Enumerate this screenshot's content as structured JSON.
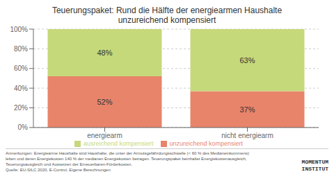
{
  "chart_data": {
    "type": "bar",
    "title": "Teuerungspaket: Rund die Hälfte der energiearmen Haushalte",
    "subtitle": "unzureichend kompensiert",
    "categories": [
      "energiearm",
      "nicht energiearm"
    ],
    "series": [
      {
        "name": "unzureichend kompensiert",
        "color": "#E8846A",
        "values": [
          52,
          37
        ],
        "value_labels": [
          "52%",
          "37%"
        ]
      },
      {
        "name": "ausreichend kompensiert",
        "color": "#C5D97A",
        "values": [
          48,
          63
        ],
        "value_labels": [
          "48%",
          "63%"
        ]
      }
    ],
    "stacked": true,
    "data_labels": true,
    "ylim": [
      0,
      100
    ],
    "yticks": [
      {
        "value": 0,
        "label": "0%"
      },
      {
        "value": 20,
        "label": "20%"
      },
      {
        "value": 40,
        "label": "40%"
      },
      {
        "value": 60,
        "label": "60%"
      },
      {
        "value": 80,
        "label": "80%"
      },
      {
        "value": 100,
        "label": "100%"
      }
    ],
    "grid": true,
    "legend": "bottom",
    "annotations": [
      "Anmerkungen: Energiearme Haushalte sind Haushalte, die unter der Armutsgefährdungsschwelle (< 60 % des Medianeinkommens)",
      "leben und deren Energiekosten 140 % der medianen Energiekosten betragen. Teuerungspaket beinhaltet Energiekostenausgleich,",
      "Teuerungsausgleich und Aussetzen der Erneuerbaren-Förderkosten.",
      "Quelle: EU-SILC 2020, E-Control, Eigene Berechnungen",
      "MOMENTUM",
      "INSTITUT"
    ]
  }
}
